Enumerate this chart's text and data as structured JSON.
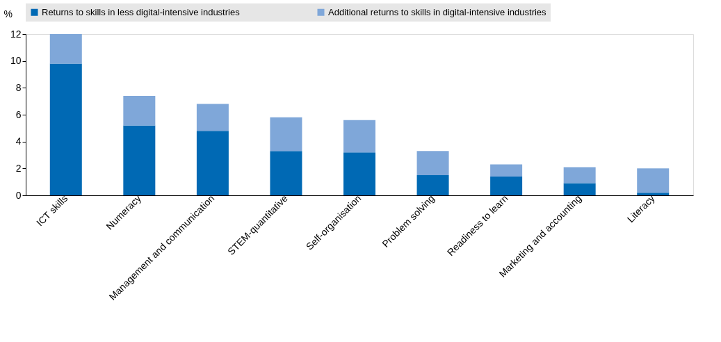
{
  "chart_data": {
    "type": "bar",
    "stacked": true,
    "ylabel": "%",
    "categories": [
      "ICT skills",
      "Numeracy",
      "Management and communication",
      "STEM-quantitative",
      "Self-organisation",
      "Problem solving",
      "Readiness to learn",
      "Marketing and accounting",
      "Literacy"
    ],
    "series": [
      {
        "name": "Returns to skills in less digital-intensive industries",
        "color": "#0069b4",
        "values": [
          9.8,
          5.2,
          4.8,
          3.3,
          3.2,
          1.5,
          1.4,
          0.9,
          0.2
        ]
      },
      {
        "name": "Additional returns to skills in digital-intensive industries",
        "color": "#7fa7d9",
        "values": [
          2.2,
          2.2,
          2.0,
          2.5,
          2.4,
          1.8,
          0.9,
          1.2,
          1.8
        ]
      }
    ],
    "ylim": [
      0,
      12
    ],
    "yticks": [
      0,
      2,
      4,
      6,
      8,
      10,
      12
    ],
    "grid": false,
    "legend": "top"
  }
}
